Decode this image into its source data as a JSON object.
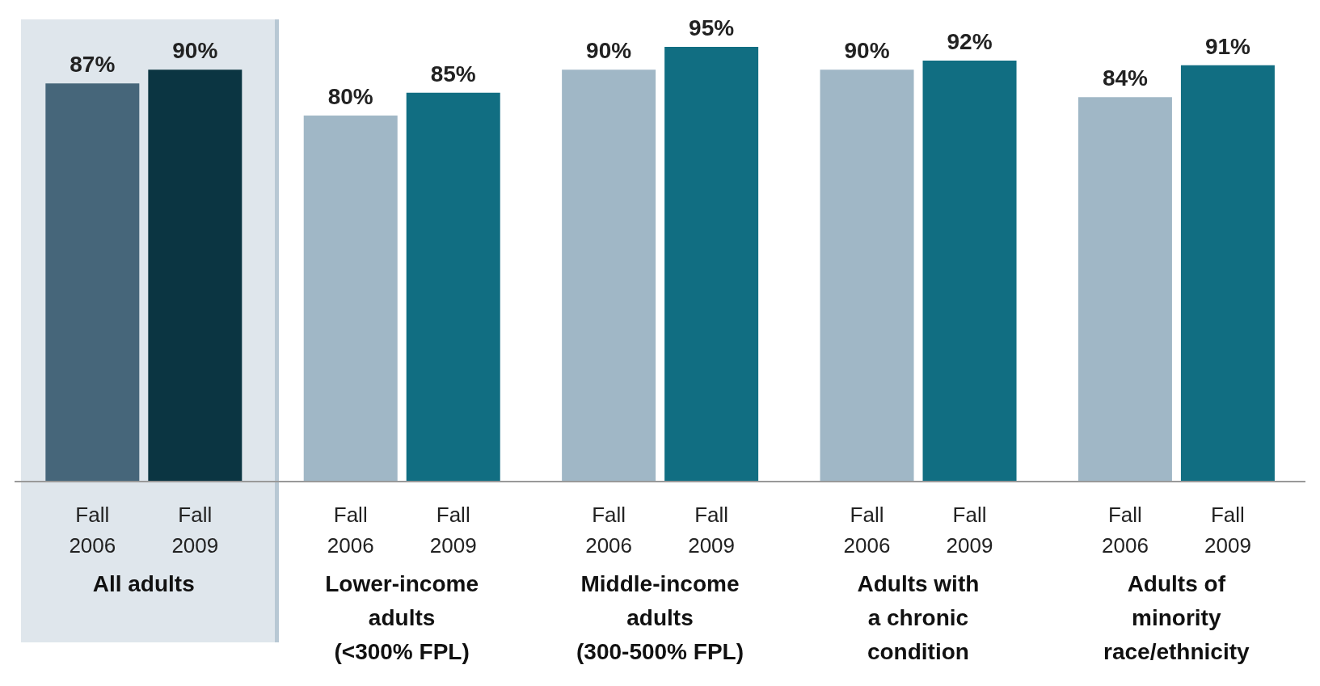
{
  "chart_data": {
    "type": "bar",
    "categories": [
      "All adults",
      "Lower-income\nadults\n(<300% FPL)",
      "Middle-income\nadults\n(300-500% FPL)",
      "Adults with\na chronic\ncondition",
      "Adults of\nminority\nrace/ethnicity"
    ],
    "series": [
      {
        "name": "Fall 2006",
        "colors": [
          "#46667a",
          "#a0b7c6",
          "#a0b7c6",
          "#a0b7c6",
          "#a0b7c6"
        ],
        "values": [
          87,
          80,
          90,
          90,
          84
        ],
        "value_labels": [
          "87%",
          "80%",
          "90%",
          "90%",
          "84%"
        ]
      },
      {
        "name": "Fall 2009",
        "colors": [
          "#0b3542",
          "#116e82",
          "#116e82",
          "#116e82",
          "#116e82"
        ],
        "values": [
          90,
          85,
          95,
          92,
          91
        ],
        "value_labels": [
          "90%",
          "85%",
          "95%",
          "92%",
          "91%"
        ]
      }
    ],
    "bands": [
      {
        "axis": "x",
        "from": "All adults",
        "to": "All adults",
        "color": "#dfe6ec"
      }
    ],
    "legend": false,
    "grid": false
  }
}
